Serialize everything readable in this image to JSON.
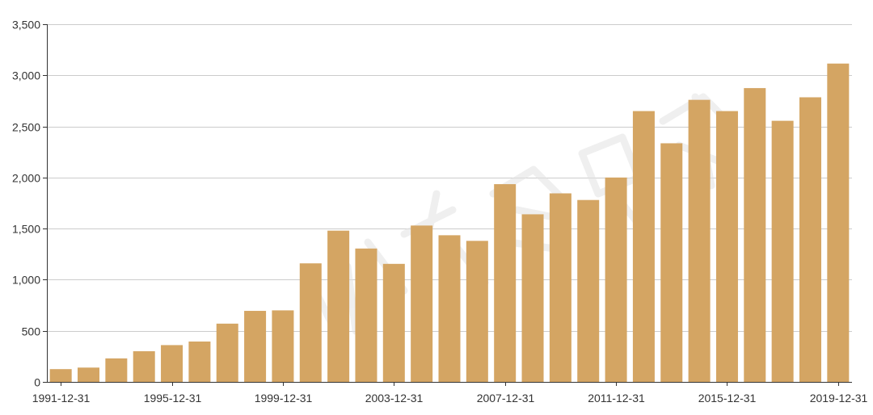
{
  "chart_data": {
    "type": "bar",
    "title": "",
    "xlabel": "",
    "ylabel": "",
    "grid": true,
    "bar_color": "#d4a563",
    "ylim": [
      0,
      3500
    ],
    "yticks": [
      0,
      500,
      1000,
      1500,
      2000,
      2500,
      3000,
      3500
    ],
    "ytick_labels": [
      "0",
      "500",
      "1,000",
      "1,500",
      "2,000",
      "2,500",
      "3,000",
      "3,500"
    ],
    "xtick_labels": [
      "1991-12-31",
      "1995-12-31",
      "1999-12-31",
      "2003-12-31",
      "2007-12-31",
      "2011-12-31",
      "2015-12-31",
      "2019-12-31"
    ],
    "categories": [
      "1991-12-31",
      "1992-12-31",
      "1993-12-31",
      "1994-12-31",
      "1995-12-31",
      "1996-12-31",
      "1997-12-31",
      "1998-12-31",
      "1999-12-31",
      "2000-12-31",
      "2001-12-31",
      "2002-12-31",
      "2003-12-31",
      "2004-12-31",
      "2005-12-31",
      "2006-12-31",
      "2007-12-31",
      "2008-12-31",
      "2009-12-31",
      "2010-12-31",
      "2011-12-31",
      "2012-12-31",
      "2013-12-31",
      "2014-12-31",
      "2015-12-31",
      "2016-12-31",
      "2017-12-31",
      "2018-12-31",
      "2019-12-31"
    ],
    "values": [
      125,
      140,
      230,
      300,
      360,
      395,
      570,
      695,
      700,
      1160,
      1480,
      1305,
      1155,
      1530,
      1435,
      1380,
      1935,
      1640,
      1845,
      1780,
      2000,
      2650,
      2335,
      2760,
      2650,
      2875,
      2555,
      2785,
      3115
    ]
  }
}
